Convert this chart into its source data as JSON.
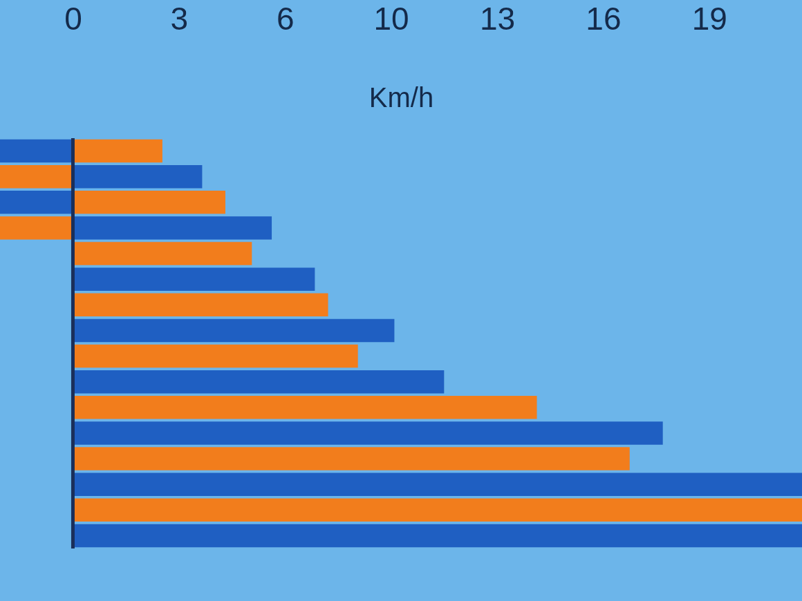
{
  "chart_data": {
    "type": "bar",
    "orientation": "horizontal",
    "xlabel": "Km/h",
    "tick_labels": "x",
    "categories": [
      null,
      null,
      null,
      null,
      null,
      null,
      null,
      null,
      null,
      null,
      null,
      null,
      null,
      null,
      null,
      null
    ],
    "xlim": [
      -2.2,
      22
    ],
    "xticks": [
      0,
      {
        "value": 3.2,
        "label": "3"
      },
      {
        "value": 6.4,
        "label": "6"
      },
      {
        "value": 9.6,
        "label": "10"
      },
      {
        "value": 12.8,
        "label": "13"
      },
      {
        "value": 16,
        "label": "16"
      },
      {
        "value": 19.2,
        "label": "19"
      }
    ],
    "ref_lines": [
      {
        "axis": "x",
        "value": 0,
        "color": "#1a2f5a"
      }
    ],
    "series": [
      {
        "color": "#1f5fc2",
        "values": [
          -2.2,
          3.9,
          -2.2,
          6.0,
          null,
          7.3,
          null,
          9.7,
          null,
          11.2,
          null,
          17.8,
          null,
          22,
          null,
          22
        ]
      },
      {
        "color": "#f27d1c",
        "values": [
          2.7,
          -2.2,
          4.6,
          -2.2,
          5.4,
          null,
          7.7,
          null,
          8.6,
          null,
          14.0,
          null,
          16.8,
          null,
          22,
          null
        ]
      }
    ]
  }
}
